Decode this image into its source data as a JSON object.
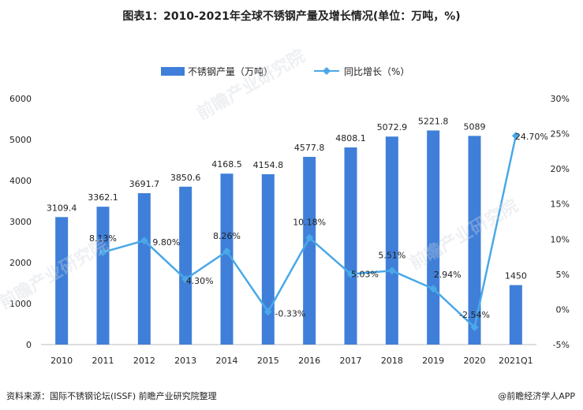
{
  "title": "图表1：2010-2021年全球不锈钢产量及增长情况(单位：万吨，%)",
  "source": "资料来源：国际不锈钢论坛(ISSF) 前瞻产业研究院整理",
  "brand": "@前瞻经济学人APP",
  "watermark": "前瞻产业研究院",
  "colors": {
    "bar": "#3f7fd9",
    "line": "#4aa8e8",
    "axis": "#bbbbbb",
    "text": "#222222"
  },
  "chart_data": {
    "type": "bar",
    "title": "图表1：2010-2021年全球不锈钢产量及增长情况(单位：万吨，%)",
    "categories": [
      "2010",
      "2011",
      "2012",
      "2013",
      "2014",
      "2015",
      "2016",
      "2017",
      "2018",
      "2019",
      "2020",
      "2021Q1"
    ],
    "series": [
      {
        "name": "不锈钢产量（万吨）",
        "type": "bar",
        "axis": "left",
        "values": [
          3109.4,
          3362.1,
          3691.7,
          3850.6,
          4168.5,
          4154.8,
          4577.8,
          4808.1,
          5072.9,
          5221.8,
          5089,
          1450
        ],
        "labels": [
          "3109.4",
          "3362.1",
          "3691.7",
          "3850.6",
          "4168.5",
          "4154.8",
          "4577.8",
          "4808.1",
          "5072.9",
          "5221.8",
          "5089",
          "1450"
        ]
      },
      {
        "name": "同比增长（%）",
        "type": "line",
        "axis": "right",
        "values": [
          null,
          8.13,
          9.8,
          4.3,
          8.26,
          -0.33,
          10.18,
          5.03,
          5.51,
          2.94,
          -2.54,
          24.7
        ],
        "labels": [
          "",
          "8.13%",
          "9.80%",
          "4.30%",
          "8.26%",
          "-0.33%",
          "10.18%",
          "5.03%",
          "5.51%",
          "2.94%",
          "-2.54%",
          "24.70%"
        ]
      }
    ],
    "y_left": {
      "min": 0,
      "max": 6000,
      "ticks": [
        "0",
        "1000",
        "2000",
        "3000",
        "4000",
        "5000",
        "6000"
      ]
    },
    "y_right": {
      "min": -5,
      "max": 30,
      "ticks": [
        "-5%",
        "0%",
        "5%",
        "10%",
        "15%",
        "20%",
        "25%",
        "30%"
      ]
    },
    "legend_position": "top-center",
    "grid": false
  }
}
